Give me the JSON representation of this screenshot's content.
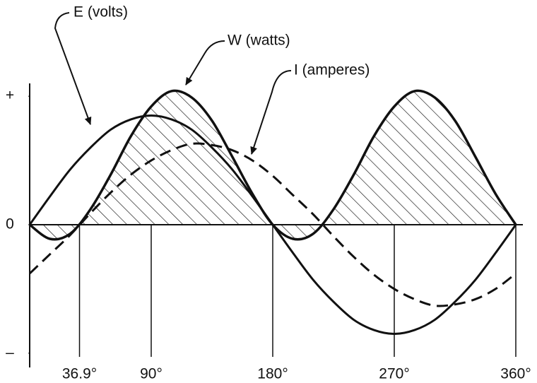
{
  "chart_data": {
    "type": "line",
    "x": [
      0,
      15,
      30,
      45,
      60,
      75,
      90,
      105,
      120,
      135,
      150,
      165,
      180,
      195,
      210,
      225,
      240,
      255,
      270,
      285,
      300,
      315,
      330,
      345,
      360
    ],
    "series": [
      {
        "name": "E (volts)",
        "color": "#111111",
        "style": "solid",
        "width": 3,
        "values": [
          0,
          0.22,
          0.43,
          0.6,
          0.74,
          0.82,
          0.85,
          0.82,
          0.74,
          0.6,
          0.43,
          0.22,
          0,
          -0.22,
          -0.43,
          -0.6,
          -0.74,
          -0.82,
          -0.85,
          -0.82,
          -0.74,
          -0.6,
          -0.43,
          -0.22,
          0
        ]
      },
      {
        "name": "W (watts)",
        "color": "#111111",
        "style": "solid",
        "width": 3.5,
        "hatch": true,
        "values": [
          0,
          -0.11,
          -0.07,
          0.12,
          0.39,
          0.69,
          0.92,
          1.04,
          0.99,
          0.81,
          0.53,
          0.24,
          0,
          -0.11,
          -0.07,
          0.12,
          0.39,
          0.69,
          0.92,
          1.04,
          0.99,
          0.81,
          0.53,
          0.24,
          0
        ]
      },
      {
        "name": "I (amperes)",
        "color": "#111111",
        "style": "dashed",
        "width": 3,
        "values": [
          -0.38,
          -0.23,
          -0.08,
          0.09,
          0.25,
          0.39,
          0.5,
          0.58,
          0.63,
          0.62,
          0.58,
          0.5,
          0.38,
          0.23,
          0.08,
          -0.09,
          -0.25,
          -0.39,
          -0.5,
          -0.58,
          -0.63,
          -0.62,
          -0.58,
          -0.5,
          -0.38
        ]
      }
    ],
    "xlim": [
      0,
      360
    ],
    "xticks": [
      {
        "value": 36.9,
        "label": "36.9°"
      },
      {
        "value": 90,
        "label": "90°"
      },
      {
        "value": 180,
        "label": "180°"
      },
      {
        "value": 270,
        "label": "270°"
      },
      {
        "value": 360,
        "label": "360°"
      }
    ],
    "ylim": [
      -1.1,
      1.1
    ],
    "yticks": [
      {
        "value": 1,
        "label": "+"
      },
      0,
      {
        "value": -1,
        "label": "–"
      }
    ]
  }
}
